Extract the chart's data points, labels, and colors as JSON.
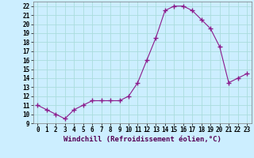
{
  "hours": [
    0,
    1,
    2,
    3,
    4,
    5,
    6,
    7,
    8,
    9,
    10,
    11,
    12,
    13,
    14,
    15,
    16,
    17,
    18,
    19,
    20,
    21,
    22,
    23
  ],
  "values": [
    11.0,
    10.5,
    10.0,
    9.5,
    10.5,
    11.0,
    11.5,
    11.5,
    11.5,
    11.5,
    12.0,
    13.5,
    16.0,
    18.5,
    21.5,
    22.0,
    22.0,
    21.5,
    20.5,
    19.5,
    17.5,
    13.5,
    14.0,
    14.5
  ],
  "line_color": "#8b1a8b",
  "marker": "+",
  "marker_size": 5,
  "bg_color": "#cceeff",
  "grid_color": "#aadddd",
  "xlabel": "Windchill (Refroidissement éolien,°C)",
  "xlim": [
    -0.5,
    23.5
  ],
  "ylim": [
    9,
    22.5
  ],
  "yticks": [
    9,
    10,
    11,
    12,
    13,
    14,
    15,
    16,
    17,
    18,
    19,
    20,
    21,
    22
  ],
  "xticks": [
    0,
    1,
    2,
    3,
    4,
    5,
    6,
    7,
    8,
    9,
    10,
    11,
    12,
    13,
    14,
    15,
    16,
    17,
    18,
    19,
    20,
    21,
    22,
    23
  ],
  "axis_fontsize": 6.0,
  "tick_fontsize": 5.5,
  "xlabel_fontsize": 6.5
}
